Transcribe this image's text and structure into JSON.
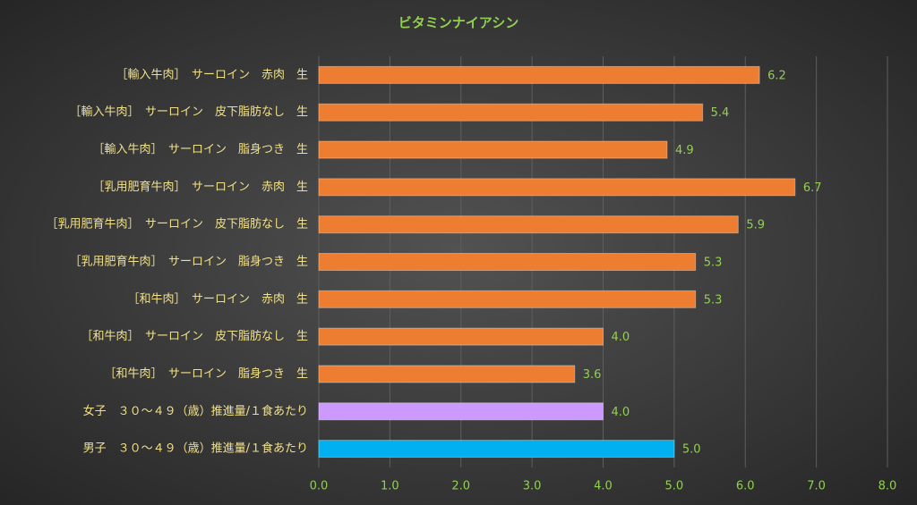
{
  "chart_data": {
    "type": "barh",
    "title": "ビタミンナイアシン",
    "categories": [
      "［輸入牛肉］　サーロイン　赤肉　生",
      "［輸入牛肉］　サーロイン　皮下脂肪なし　生",
      "［輸入牛肉］　サーロイン　脂身つき　生",
      "［乳用肥育牛肉］　サーロイン　赤肉　生",
      "［乳用肥育牛肉］　サーロイン　皮下脂肪なし　生",
      "［乳用肥育牛肉］　サーロイン　脂身つき　生",
      "［和牛肉］　サーロイン　赤肉　生",
      "［和牛肉］　サーロイン　皮下脂肪なし　生",
      "［和牛肉］　サーロイン　脂身つき　生",
      "女子　３０～４９（歳）推進量/１食あたり",
      "男子　３０～４９（歳）推進量/１食あたり"
    ],
    "values": [
      6.2,
      5.4,
      4.9,
      6.7,
      5.9,
      5.3,
      5.3,
      4,
      3.6,
      4,
      5
    ],
    "value_labels": [
      "6.2",
      "5.4",
      "4.9",
      "6.7",
      "5.9",
      "5.3",
      "5.3",
      "4.0",
      "3.6",
      "4.0",
      "5.0"
    ],
    "colors": [
      "#ED7D31",
      "#ED7D31",
      "#ED7D31",
      "#ED7D31",
      "#ED7D31",
      "#ED7D31",
      "#ED7D31",
      "#ED7D31",
      "#ED7D31",
      "#CC99FF",
      "#00B0F0"
    ],
    "xlim": [
      0,
      8
    ],
    "xticks": [
      {
        "value": 0,
        "label": "0.0"
      },
      {
        "value": 1,
        "label": "1.0"
      },
      {
        "value": 2,
        "label": "2.0"
      },
      {
        "value": 3,
        "label": "3.0"
      },
      {
        "value": 4,
        "label": "4.0"
      },
      {
        "value": 5,
        "label": "5.0"
      },
      {
        "value": 6,
        "label": "6.0"
      },
      {
        "value": 7,
        "label": "7.0"
      },
      {
        "value": 8,
        "label": "8.0"
      }
    ],
    "grid": true
  }
}
